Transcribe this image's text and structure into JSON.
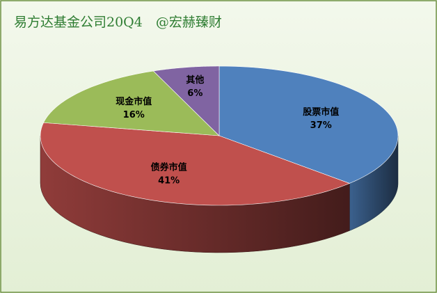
{
  "chart_data": {
    "type": "pie3d",
    "title": "易方达基金公司20Q4　@宏赫臻财",
    "categories": [
      "股票市值",
      "债券市值",
      "现金市值",
      "其他"
    ],
    "values": [
      37,
      41,
      16,
      6
    ],
    "value_labels": [
      "37%",
      "41%",
      "16%",
      "6%"
    ],
    "colors": [
      "#4f81bd",
      "#c0504d",
      "#9bbb59",
      "#8064a2"
    ]
  }
}
